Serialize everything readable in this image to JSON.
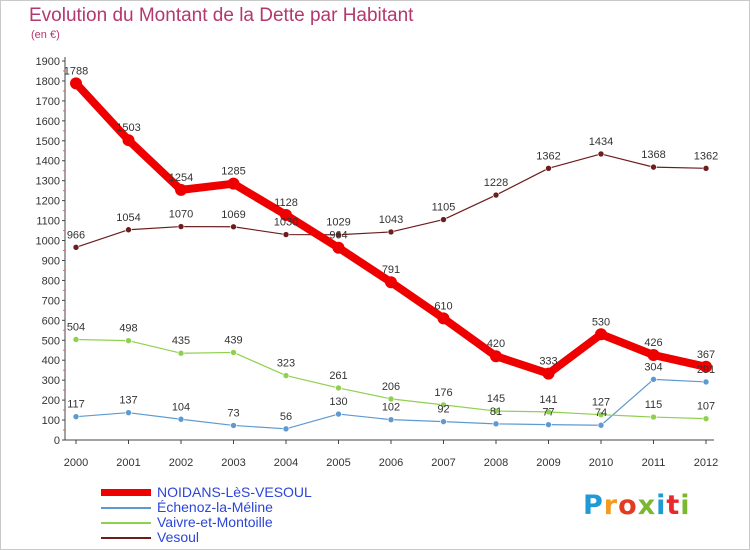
{
  "title": "Evolution du Montant de la Dette par Habitant",
  "subtitle": "(en €)",
  "logo": {
    "text": "Proxiti",
    "colors": [
      "#1e9ad6",
      "#f39a1f",
      "#e23b22",
      "#7cb82f",
      "#1e9ad6",
      "#e9282e",
      "#7cb82f"
    ]
  },
  "chart_data": {
    "type": "line",
    "x": [
      2000,
      2001,
      2002,
      2003,
      2004,
      2005,
      2006,
      2007,
      2008,
      2009,
      2010,
      2011,
      2012
    ],
    "ylim": [
      0,
      1900
    ],
    "yticks": [
      0,
      100,
      200,
      300,
      400,
      500,
      600,
      700,
      800,
      900,
      1000,
      1100,
      1200,
      1300,
      1400,
      1500,
      1600,
      1700,
      1800,
      1900
    ],
    "grid": false,
    "legend_position": "bottom-left",
    "series": [
      {
        "name": "NOIDANS-LèS-VESOUL",
        "color": "#ee0000",
        "values": [
          1788,
          1503,
          1254,
          1285,
          1128,
          964,
          791,
          610,
          420,
          333,
          530,
          426,
          367
        ],
        "labels": [
          "1788",
          "1503",
          "1254",
          "1285",
          "1128",
          "964",
          "791",
          "610",
          "420",
          "333",
          "530",
          "426",
          "367"
        ]
      },
      {
        "name": "Échenoz-la-Méline",
        "color": "#5e9ad0",
        "values": [
          117,
          137,
          104,
          73,
          56,
          130,
          102,
          92,
          81,
          77,
          74,
          304,
          291
        ],
        "labels": [
          "117",
          "137",
          "104",
          "73",
          "56",
          "130",
          "102",
          "92",
          "81",
          "77",
          "74",
          "304",
          "291"
        ]
      },
      {
        "name": "Vaivre-et-Montoille",
        "color": "#8fd14f",
        "values": [
          504,
          498,
          435,
          439,
          323,
          261,
          206,
          176,
          145,
          141,
          127,
          115,
          107
        ],
        "labels": [
          "504",
          "498",
          "435",
          "439",
          "323",
          "261",
          "206",
          "176",
          "145",
          "141",
          "127",
          "115",
          "107"
        ]
      },
      {
        "name": "Vesoul",
        "color": "#6e1d1d",
        "values": [
          966,
          1054,
          1070,
          1069,
          1030,
          1029,
          1043,
          1105,
          1228,
          1362,
          1434,
          1368,
          1362
        ],
        "labels": [
          "966",
          "1054",
          "1070",
          "1069",
          "1030",
          "1029",
          "1043",
          "1105",
          "1228",
          "1362",
          "1434",
          "1368",
          "1362"
        ]
      }
    ]
  }
}
